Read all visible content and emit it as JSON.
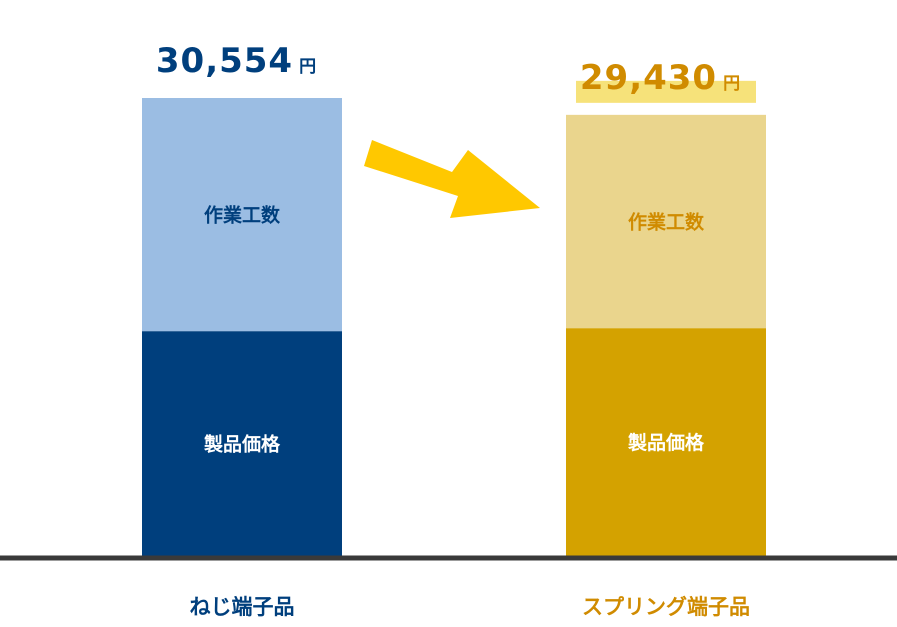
{
  "chart_data": {
    "type": "bar",
    "stacked": true,
    "categories": [
      "ねじ端子品",
      "スプリング端子品"
    ],
    "series": [
      {
        "name": "製品価格",
        "values": [
          15000,
          15200
        ]
      },
      {
        "name": "作業工数",
        "values": [
          15554,
          14230
        ]
      }
    ],
    "totals": [
      "30,554",
      "29,430"
    ],
    "unit": "円",
    "segment_labels": [
      "作業工数",
      "製品価格"
    ],
    "ylim": [
      0,
      32000
    ],
    "colors": {
      "screw": {
        "product": "#003f7d",
        "work": "#9bbde3",
        "text": "#003f7d"
      },
      "spring": {
        "product": "#d4a200",
        "work": "#ead58d",
        "text": "#d08b00",
        "highlight": "#f6e27a"
      },
      "arrow": "#ffc800",
      "axis": "#3a3a3a"
    },
    "arrow_direction": "right"
  }
}
